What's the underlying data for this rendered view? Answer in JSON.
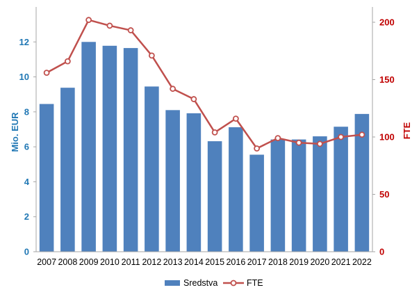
{
  "chart_data": {
    "type": "bar",
    "title": "",
    "categories": [
      "2007",
      "2008",
      "2009",
      "2010",
      "2011",
      "2012",
      "2013",
      "2014",
      "2015",
      "2016",
      "2017",
      "2018",
      "2019",
      "2020",
      "2021",
      "2022"
    ],
    "series": [
      {
        "name": "Sredstva",
        "type": "bar",
        "axis": "left",
        "color": "#4F81BD",
        "values": [
          8.45,
          9.38,
          12.0,
          11.78,
          11.65,
          9.45,
          8.1,
          7.92,
          6.32,
          7.12,
          5.55,
          6.42,
          6.42,
          6.6,
          7.15,
          7.88
        ]
      },
      {
        "name": "FTE",
        "type": "line",
        "axis": "right",
        "color": "#C0504D",
        "values": [
          156,
          166,
          202,
          197,
          193,
          171,
          142,
          133,
          104,
          116,
          90,
          99,
          95,
          94,
          100,
          102
        ]
      }
    ],
    "y_left": {
      "label": "Mio. EUR",
      "min": 0,
      "max": 14,
      "ticks": [
        0,
        2,
        4,
        6,
        8,
        10,
        12
      ],
      "color": "#1F77B4"
    },
    "y_right": {
      "label": "FTE",
      "min": 0,
      "max": 213.33,
      "ticks": [
        0,
        50,
        100,
        150,
        200
      ],
      "color": "#C00000"
    },
    "grid": false,
    "legend_position": "bottom-center"
  }
}
